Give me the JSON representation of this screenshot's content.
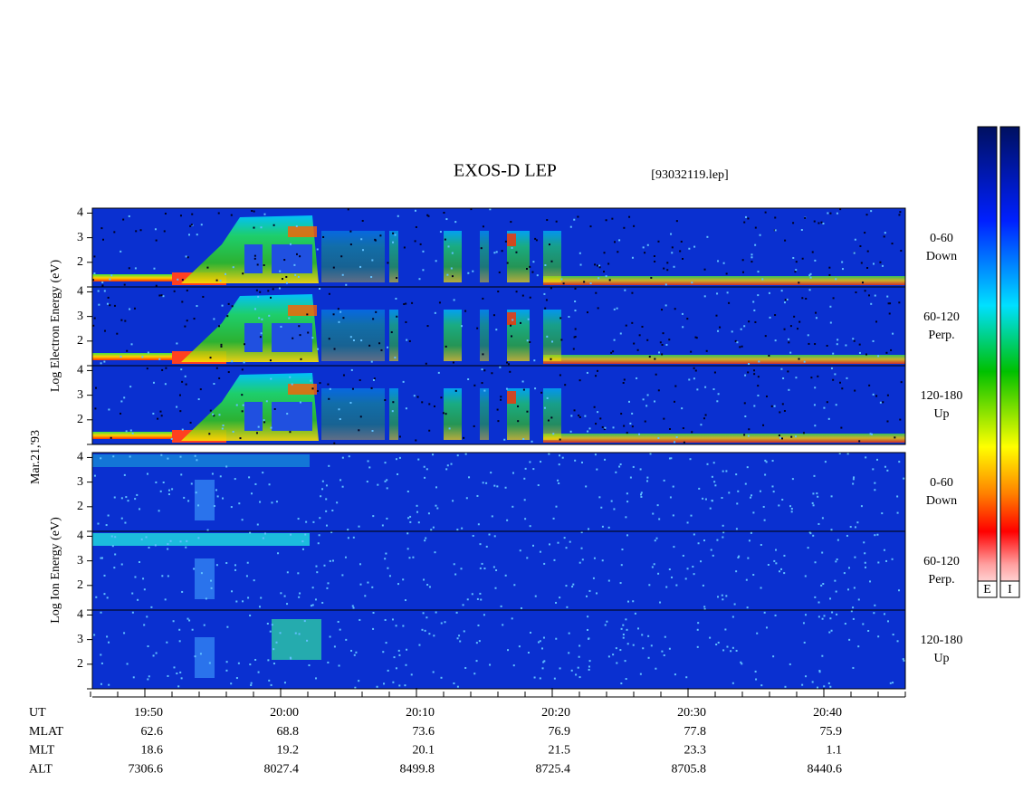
{
  "title": "EXOS-D LEP",
  "file": "[93032119.lep]",
  "date": "Mar.21,'93",
  "electron_axis_label": "Log Electron Energy (eV)",
  "ion_axis_label": "Log Ion Energy (eV)",
  "energy_lim": [
    1,
    4.2
  ],
  "energy_ticks": [
    {
      "value": 1,
      "label": ""
    },
    2,
    3,
    4
  ],
  "electron_panels": [
    {
      "range": "0-60",
      "direction": "Down"
    },
    {
      "range": "60-120",
      "direction": "Perp."
    },
    {
      "range": "120-180",
      "direction": "Up"
    }
  ],
  "ion_panels": [
    {
      "range": "0-60",
      "direction": "Down"
    },
    {
      "range": "60-120",
      "direction": "Perp."
    },
    {
      "range": "120-180",
      "direction": "Up"
    }
  ],
  "colorbars": [
    "E",
    "I"
  ],
  "time_table": [
    {
      "name": "UT",
      "values": [
        "19:50",
        "20:00",
        "20:10",
        "20:20",
        "20:30",
        "20:40"
      ]
    },
    {
      "name": "MLAT",
      "values": [
        "62.6",
        "68.8",
        "73.6",
        "76.9",
        "77.8",
        "75.9"
      ]
    },
    {
      "name": "MLT",
      "values": [
        "18.6",
        "19.2",
        "20.1",
        "21.5",
        "23.3",
        "1.1"
      ]
    },
    {
      "name": "ALT",
      "values": [
        "7306.6",
        "8027.4",
        "8499.8",
        "8725.4",
        "8705.8",
        "8440.6"
      ]
    }
  ]
}
